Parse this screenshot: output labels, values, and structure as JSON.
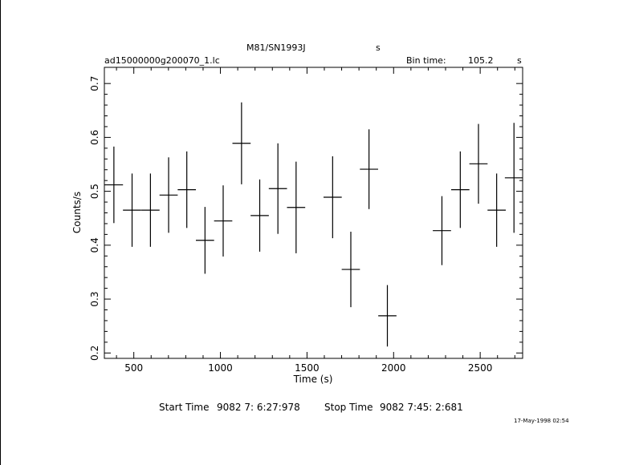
{
  "header": {
    "object": "M81/SN1993J",
    "object_unit": "s",
    "filename": "ad15000000g200070_1.lc",
    "bin_time_label": "Bin time:",
    "bin_time_value": "105.2",
    "bin_time_unit": "s"
  },
  "footer": {
    "start_label": "Start Time",
    "start_value": "9082  7: 6:27:978",
    "stop_label": "Stop Time",
    "stop_value": "9082  7:45: 2:681",
    "date": "17-May-1998 02:54"
  },
  "chart_data": {
    "type": "scatter",
    "xlabel": "Time (s)",
    "ylabel": "Counts/s",
    "xlim": [
      330,
      2745
    ],
    "ylim": [
      0.19,
      0.73
    ],
    "x_ticks": [
      500,
      1000,
      1500,
      2000,
      2500
    ],
    "x_tick_labels": [
      "500",
      "1000",
      "1500",
      "2000",
      "2500"
    ],
    "y_ticks": [
      0.2,
      0.3,
      0.4,
      0.5,
      0.6,
      0.7
    ],
    "y_tick_labels": [
      "0.2",
      "0.3",
      "0.4",
      "0.5",
      "0.6",
      "0.7"
    ],
    "x_error": 52.6,
    "points": [
      {
        "x": 385,
        "y": 0.512,
        "yerr": 0.071
      },
      {
        "x": 490,
        "y": 0.465,
        "yerr": 0.068
      },
      {
        "x": 596,
        "y": 0.465,
        "yerr": 0.068
      },
      {
        "x": 701,
        "y": 0.493,
        "yerr": 0.07
      },
      {
        "x": 806,
        "y": 0.503,
        "yerr": 0.071
      },
      {
        "x": 911,
        "y": 0.409,
        "yerr": 0.062
      },
      {
        "x": 1016,
        "y": 0.445,
        "yerr": 0.066
      },
      {
        "x": 1122,
        "y": 0.589,
        "yerr": 0.076
      },
      {
        "x": 1227,
        "y": 0.455,
        "yerr": 0.067
      },
      {
        "x": 1332,
        "y": 0.505,
        "yerr": 0.084
      },
      {
        "x": 1437,
        "y": 0.47,
        "yerr": 0.085
      },
      {
        "x": 1648,
        "y": 0.489,
        "yerr": 0.076
      },
      {
        "x": 1753,
        "y": 0.355,
        "yerr": 0.07
      },
      {
        "x": 1858,
        "y": 0.541,
        "yerr": 0.074
      },
      {
        "x": 1964,
        "y": 0.269,
        "yerr": 0.057
      },
      {
        "x": 2279,
        "y": 0.427,
        "yerr": 0.064
      },
      {
        "x": 2385,
        "y": 0.503,
        "yerr": 0.071
      },
      {
        "x": 2490,
        "y": 0.551,
        "yerr": 0.074
      },
      {
        "x": 2595,
        "y": 0.465,
        "yerr": 0.068
      },
      {
        "x": 2695,
        "y": 0.525,
        "yerr": 0.102
      }
    ]
  }
}
